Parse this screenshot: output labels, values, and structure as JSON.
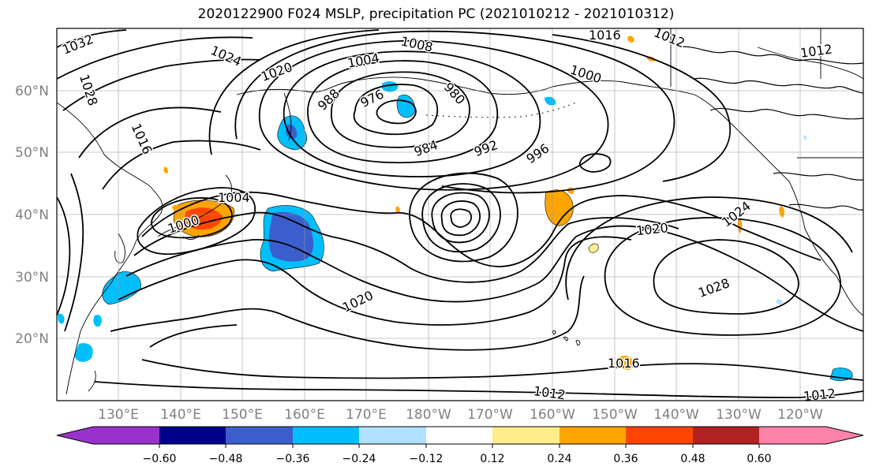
{
  "title": "2020122900 F024 MSLP, precipitation PC (2021010212 - 2021010312)",
  "map": {
    "lon_labels": [
      "130°E",
      "140°E",
      "150°E",
      "160°E",
      "170°E",
      "180°W",
      "170°W",
      "160°W",
      "150°W",
      "140°W",
      "130°W",
      "120°W"
    ],
    "lat_labels": [
      "60°N",
      "50°N",
      "40°N",
      "30°N",
      "20°N"
    ],
    "isobar_labels": [
      "1032",
      "1024",
      "1020",
      "1004",
      "1008",
      "1016",
      "1012",
      "1012",
      "1000",
      "988",
      "976",
      "980",
      "984",
      "992",
      "996",
      "1004",
      "1000",
      "1024",
      "1020",
      "1020",
      "1028",
      "1016",
      "1012",
      "1012",
      "1016",
      "1028"
    ]
  },
  "colorbar": {
    "labels": [
      "−0.60",
      "−0.48",
      "−0.36",
      "−0.24",
      "−0.12",
      "0.12",
      "0.24",
      "0.36",
      "0.48",
      "0.60"
    ],
    "colors": [
      "#9932cc",
      "#00008b",
      "#3a5fcd",
      "#00bfff",
      "#b0e2ff",
      "#ffffff",
      "#ffec8b",
      "#ffa500",
      "#ff4500",
      "#b22222",
      "#ff82ab"
    ]
  }
}
